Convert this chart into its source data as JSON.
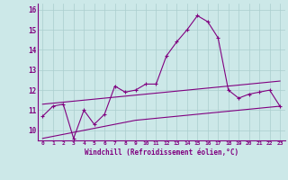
{
  "xlabel": "Windchill (Refroidissement éolien,°C)",
  "x": [
    0,
    1,
    2,
    3,
    4,
    5,
    6,
    7,
    8,
    9,
    10,
    11,
    12,
    13,
    14,
    15,
    16,
    17,
    18,
    19,
    20,
    21,
    22,
    23
  ],
  "windchill": [
    10.7,
    11.2,
    11.3,
    9.6,
    11.0,
    10.3,
    10.8,
    12.2,
    11.9,
    12.0,
    12.3,
    12.3,
    13.7,
    14.4,
    15.0,
    15.7,
    15.4,
    14.6,
    12.0,
    11.6,
    11.8,
    11.9,
    12.0,
    11.2
  ],
  "upper_line": [
    11.3,
    11.35,
    11.4,
    11.45,
    11.5,
    11.55,
    11.6,
    11.65,
    11.7,
    11.75,
    11.8,
    11.85,
    11.9,
    11.95,
    12.0,
    12.05,
    12.1,
    12.15,
    12.2,
    12.25,
    12.3,
    12.35,
    12.4,
    12.45
  ],
  "lower_line": [
    9.6,
    9.7,
    9.8,
    9.9,
    10.0,
    10.1,
    10.2,
    10.3,
    10.4,
    10.5,
    10.55,
    10.6,
    10.65,
    10.7,
    10.75,
    10.8,
    10.85,
    10.9,
    10.95,
    11.0,
    11.05,
    11.1,
    11.15,
    11.2
  ],
  "line_color": "#800080",
  "bg_color": "#cce8e8",
  "grid_color": "#aacece",
  "ylim": [
    9.5,
    16.3
  ],
  "yticks": [
    10,
    11,
    12,
    13,
    14,
    15,
    16
  ],
  "marker": "+",
  "marker_size": 3,
  "linewidth": 0.8
}
